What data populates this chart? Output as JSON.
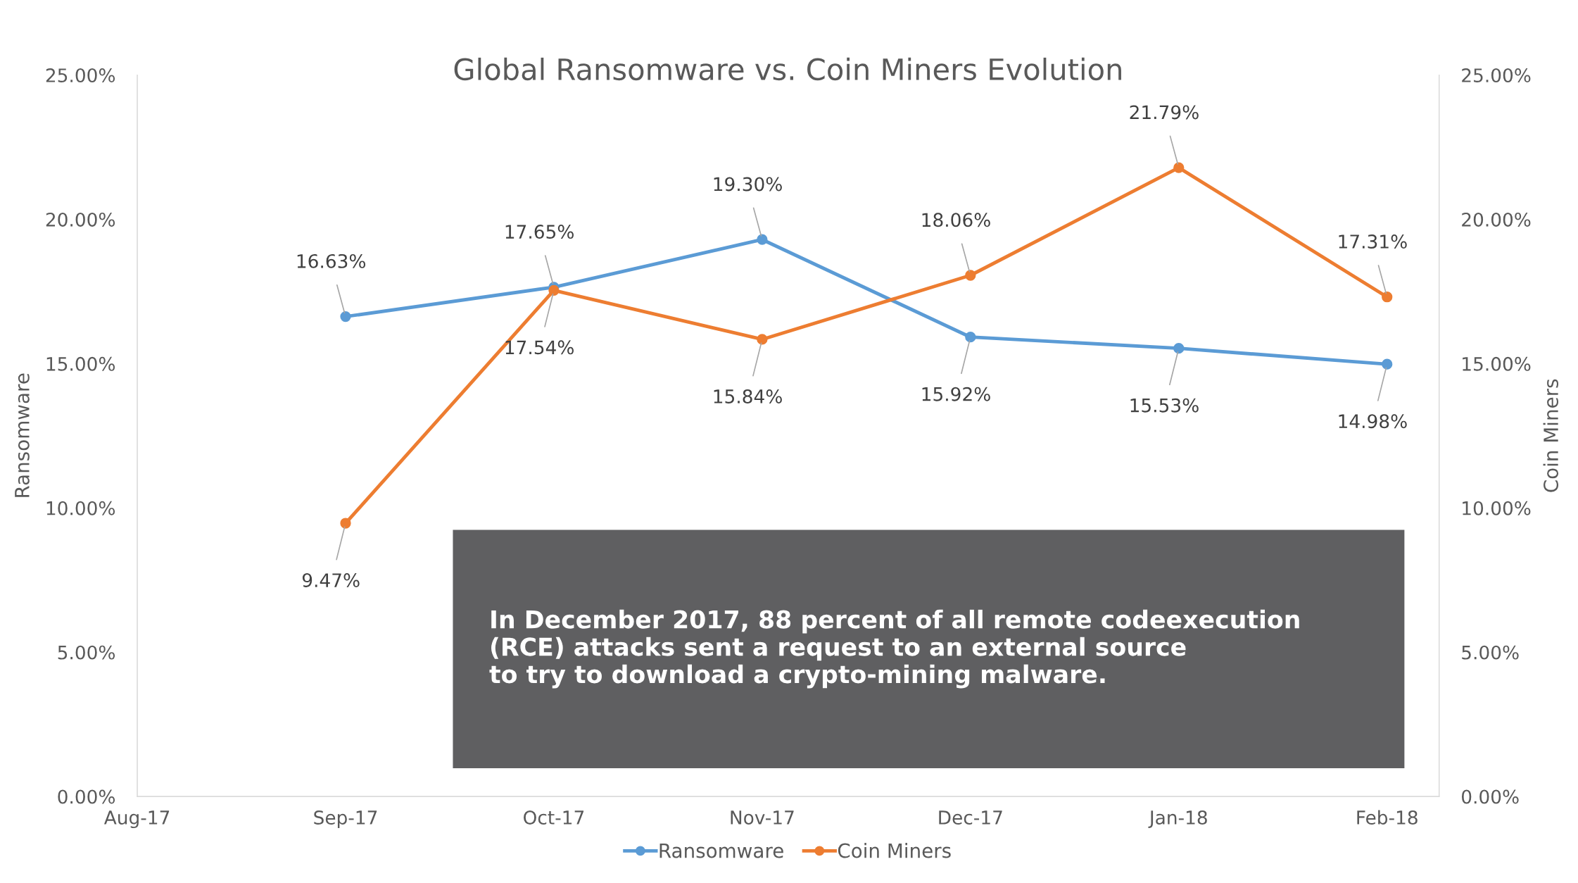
{
  "chart_data": {
    "type": "line",
    "title": "Global Ransomware vs. Coin Miners Evolution",
    "ylabel": "Ransomware",
    "y2label": "Coin Miners",
    "categories": [
      "Aug-17",
      "Sep-17",
      "Oct-17",
      "Nov-17",
      "Dec-17",
      "Jan-18",
      "Feb-18"
    ],
    "series": [
      {
        "name": "Ransomware",
        "color": "#5b9bd5",
        "values": [
          null,
          16.63,
          17.65,
          19.3,
          15.92,
          15.53,
          14.98
        ],
        "value_labels": [
          null,
          "16.63%",
          "17.65%",
          "19.30%",
          "15.92%",
          "15.53%",
          "14.98%"
        ]
      },
      {
        "name": "Coin Miners",
        "color": "#ed7d31",
        "axis": "y2",
        "values": [
          null,
          9.47,
          17.54,
          15.84,
          18.06,
          21.79,
          17.31
        ],
        "value_labels": [
          null,
          "9.47%",
          "17.54%",
          "15.84%",
          "18.06%",
          "21.79%",
          "17.31%"
        ]
      }
    ],
    "ylim": [
      0,
      25
    ],
    "yticks": [
      {
        "value": 0,
        "label": "0.00%"
      },
      {
        "value": 5,
        "label": "5.00%"
      },
      {
        "value": 10,
        "label": "10.00%"
      },
      {
        "value": 15,
        "label": "15.00%"
      },
      {
        "value": 20,
        "label": "20.00%"
      },
      {
        "value": 25,
        "label": "25.00%"
      }
    ],
    "y2lim": [
      0,
      25
    ],
    "y2ticks": [
      {
        "value": 0,
        "label": "0.00%"
      },
      {
        "value": 5,
        "label": "5.00%"
      },
      {
        "value": 10,
        "label": "10.00%"
      },
      {
        "value": 15,
        "label": "15.00%"
      },
      {
        "value": 20,
        "label": "20.00%"
      },
      {
        "value": 25,
        "label": "25.00%"
      }
    ],
    "marker": "circle",
    "legend": "bottom",
    "grid": false,
    "annotations": [
      "In December 2017, 88 percent of all remote codeexecution\n(RCE) attacks sent a request to an external source\nto try to download a crypto-mining malware."
    ]
  }
}
